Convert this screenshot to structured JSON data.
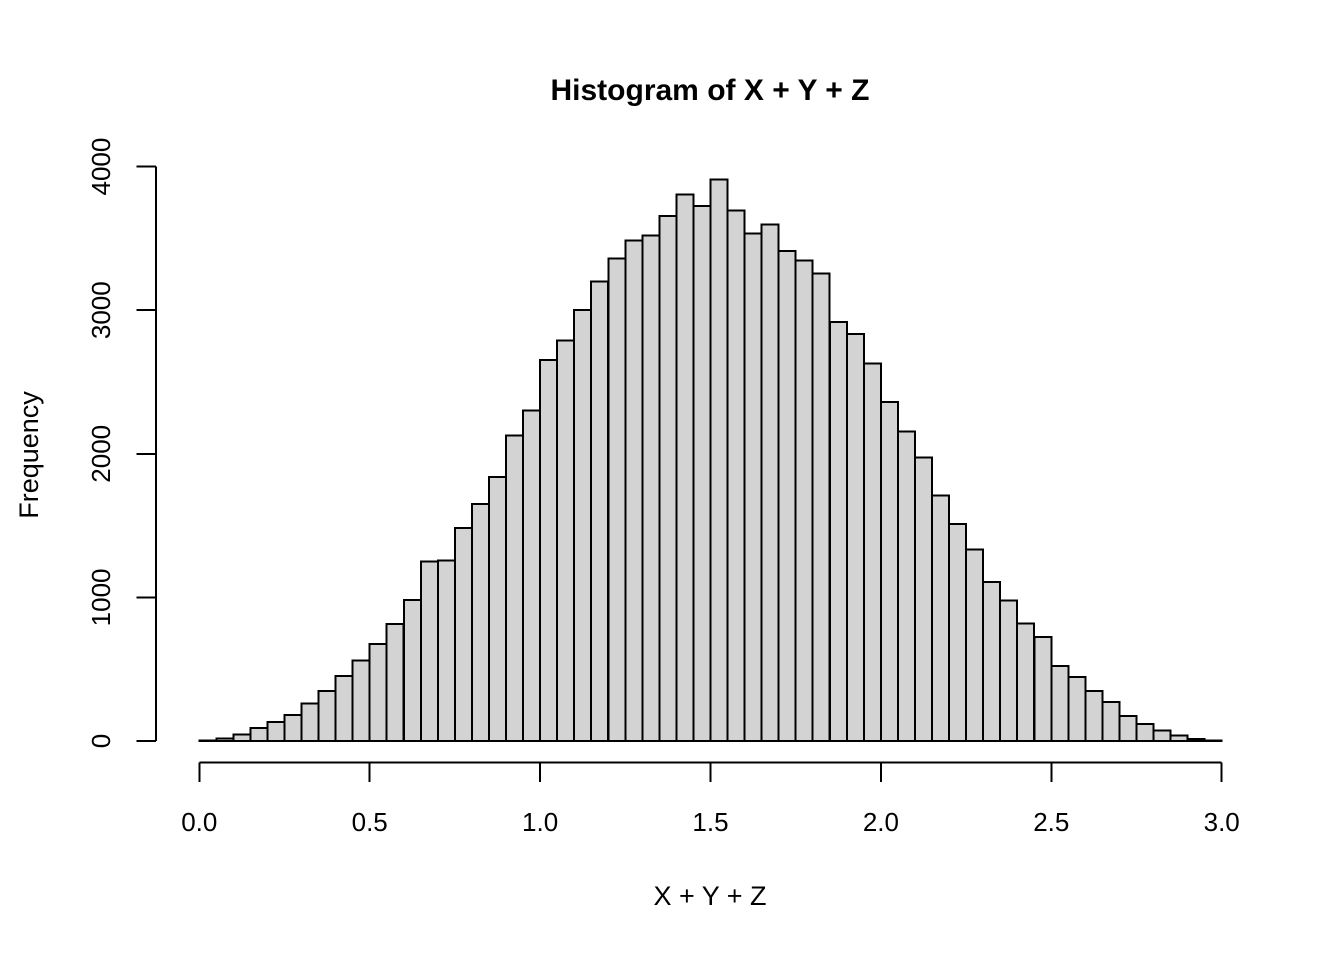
{
  "figure": {
    "title": "Histogram of X + Y + Z",
    "xlabel": "X + Y + Z",
    "ylabel": "Frequency",
    "colors": {
      "background": "#FFFFFF",
      "bar_fill": "#D3D3D3",
      "bar_stroke": "#000000",
      "axis": "#000000",
      "text": "#000000"
    }
  },
  "chart_data": {
    "type": "bar",
    "subtype": "histogram",
    "title": "Histogram of X + Y + Z",
    "xlabel": "X + Y + Z",
    "ylabel": "Frequency",
    "xlim": [
      0.0,
      3.0
    ],
    "ylim": [
      0,
      4000
    ],
    "grid": "off",
    "legend": "none",
    "bin_start": 0.0,
    "bin_width": 0.05,
    "x_ticks": [
      0.0,
      0.5,
      1.0,
      1.5,
      2.0,
      2.5,
      3.0
    ],
    "x_tick_labels": [
      "0.0",
      "0.5",
      "1.0",
      "1.5",
      "2.0",
      "2.5",
      "3.0"
    ],
    "y_ticks": [
      0,
      1000,
      2000,
      3000,
      4000
    ],
    "y_tick_labels": [
      "0",
      "1000",
      "2000",
      "3000",
      "4000"
    ],
    "frequencies": [
      3,
      18,
      45,
      90,
      132,
      181,
      262,
      347,
      452,
      561,
      674,
      815,
      982,
      1250,
      1258,
      1485,
      1650,
      1840,
      2127,
      2300,
      2653,
      2790,
      3000,
      3200,
      3360,
      3487,
      3520,
      3655,
      3805,
      3725,
      3910,
      3695,
      3535,
      3598,
      3412,
      3345,
      3255,
      2917,
      2836,
      2630,
      2361,
      2155,
      1974,
      1711,
      1512,
      1335,
      1107,
      979,
      817,
      724,
      521,
      447,
      347,
      271,
      175,
      120,
      72,
      38,
      15,
      4
    ]
  }
}
